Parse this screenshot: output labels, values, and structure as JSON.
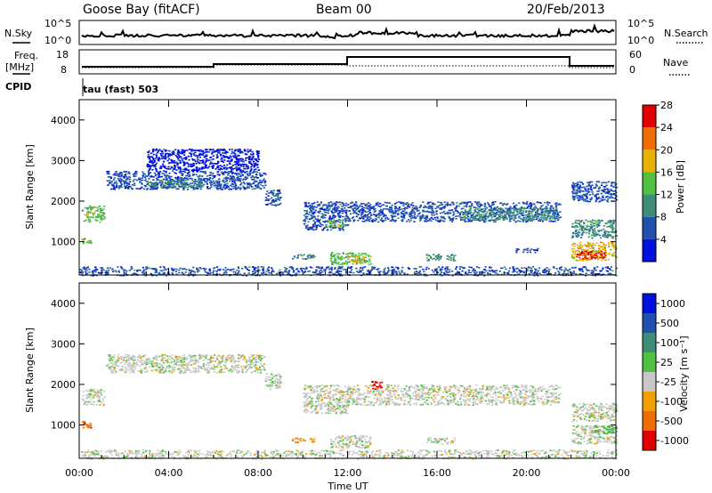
{
  "header": {
    "station": "Goose Bay (fitACF)",
    "beam": "Beam 00",
    "date": "20/Feb/2013"
  },
  "top_panels": {
    "nsky_label": "N.Sky",
    "nsky_ticks": [
      "10^5",
      "10^0"
    ],
    "nsearch_label": "N.Search",
    "nsearch_ticks": [
      "10^5",
      "10^0"
    ],
    "freq_label_1": "Freq.",
    "freq_label_2": "[MHz]",
    "freq_ticks": [
      "18",
      "8"
    ],
    "nave_label": "Nave",
    "nave_ticks": [
      "60",
      "0"
    ],
    "cpid_label": "CPID",
    "cpid_value": "tau (fast) 503"
  },
  "chart_data": [
    {
      "type": "heatmap",
      "name": "power",
      "ylabel": "Slant Range [km]",
      "ylim": [
        180,
        4500
      ],
      "y_ticks": [
        1000,
        2000,
        3000,
        4000
      ],
      "xlim": [
        0,
        24
      ],
      "colorbar_label": "Power [dB]",
      "colorbar_ticks": [
        "4",
        "8",
        "12",
        "16",
        "20",
        "24",
        "28"
      ],
      "colors": [
        "#0010e0",
        "#2050b0",
        "#3c8c78",
        "#50c040",
        "#e8b000",
        "#f06c00",
        "#e00000"
      ],
      "regions": [
        {
          "t0": 0.1,
          "t1": 1.1,
          "r0": 1500,
          "r1": 1900,
          "level": 3
        },
        {
          "t0": 0.1,
          "t1": 0.5,
          "r0": 950,
          "r1": 1100,
          "level": 3
        },
        {
          "t0": 1.2,
          "t1": 8.3,
          "r0": 2300,
          "r1": 2750,
          "level": 1
        },
        {
          "t0": 3.0,
          "t1": 5.5,
          "r0": 2350,
          "r1": 2550,
          "level": 2
        },
        {
          "t0": 8.3,
          "t1": 9.0,
          "r0": 1900,
          "r1": 2300,
          "level": 1
        },
        {
          "t0": 10.0,
          "t1": 12.0,
          "r0": 1300,
          "r1": 2000,
          "level": 1
        },
        {
          "t0": 11.0,
          "t1": 11.8,
          "r0": 1350,
          "r1": 1550,
          "level": 3
        },
        {
          "t0": 11.2,
          "t1": 13.0,
          "r0": 450,
          "r1": 750,
          "level": 3
        },
        {
          "t0": 12.0,
          "t1": 12.7,
          "r0": 500,
          "r1": 650,
          "level": 4
        },
        {
          "t0": 9.5,
          "t1": 10.5,
          "r0": 580,
          "r1": 700,
          "level": 2
        },
        {
          "t0": 12.0,
          "t1": 21.5,
          "r0": 1500,
          "r1": 2000,
          "level": 1
        },
        {
          "t0": 17.0,
          "t1": 21.3,
          "r0": 1550,
          "r1": 1850,
          "level": 2
        },
        {
          "t0": 15.5,
          "t1": 16.8,
          "r0": 550,
          "r1": 700,
          "level": 2
        },
        {
          "t0": 19.5,
          "t1": 20.5,
          "r0": 750,
          "r1": 850,
          "level": 1
        },
        {
          "t0": 22.0,
          "t1": 24.0,
          "r0": 2000,
          "r1": 2500,
          "level": 1
        },
        {
          "t0": 22.0,
          "t1": 24.0,
          "r0": 1100,
          "r1": 1550,
          "level": 2
        },
        {
          "t0": 22.0,
          "t1": 24.0,
          "r0": 550,
          "r1": 1000,
          "level": 4
        },
        {
          "t0": 22.2,
          "t1": 23.5,
          "r0": 600,
          "r1": 780,
          "level": 6
        },
        {
          "t0": 0.0,
          "t1": 24.0,
          "r0": 180,
          "r1": 400,
          "level": 1
        },
        {
          "t0": 3.0,
          "t1": 8.0,
          "r0": 2750,
          "r1": 3300,
          "level": 0
        }
      ]
    },
    {
      "type": "heatmap",
      "name": "velocity",
      "ylabel": "Slant Range [km]",
      "ylim": [
        180,
        4500
      ],
      "y_ticks": [
        1000,
        2000,
        3000,
        4000
      ],
      "xlim": [
        0,
        24
      ],
      "x_ticks": [
        "00:00",
        "04:00",
        "08:00",
        "12:00",
        "16:00",
        "20:00",
        "00:00"
      ],
      "xlabel": "Time UT",
      "colorbar_label": "Velocity [m s⁻¹]",
      "colorbar_ticks": [
        "1000",
        "500",
        "100",
        "25",
        "-25",
        "-100",
        "-500",
        "-1000"
      ],
      "colors": [
        "#0010e0",
        "#2050b0",
        "#3c8c78",
        "#50c040",
        "#c8c8c8",
        "#f0a000",
        "#f06c00",
        "#e00000"
      ],
      "regions": [
        {
          "t0": 0.1,
          "t1": 1.1,
          "r0": 1500,
          "r1": 1900,
          "level": 4
        },
        {
          "t0": 0.1,
          "t1": 0.5,
          "r0": 950,
          "r1": 1100,
          "level": 6
        },
        {
          "t0": 1.2,
          "t1": 8.3,
          "r0": 2300,
          "r1": 2750,
          "level": 4
        },
        {
          "t0": 8.3,
          "t1": 9.0,
          "r0": 1900,
          "r1": 2300,
          "level": 4
        },
        {
          "t0": 10.0,
          "t1": 12.0,
          "r0": 1300,
          "r1": 2000,
          "level": 4
        },
        {
          "t0": 9.5,
          "t1": 10.5,
          "r0": 580,
          "r1": 700,
          "level": 5
        },
        {
          "t0": 11.2,
          "t1": 13.0,
          "r0": 450,
          "r1": 750,
          "level": 4
        },
        {
          "t0": 12.0,
          "t1": 21.5,
          "r0": 1500,
          "r1": 2000,
          "level": 4
        },
        {
          "t0": 15.5,
          "t1": 16.8,
          "r0": 550,
          "r1": 700,
          "level": 4
        },
        {
          "t0": 22.0,
          "t1": 24.0,
          "r0": 1100,
          "r1": 1550,
          "level": 4
        },
        {
          "t0": 22.0,
          "t1": 24.0,
          "r0": 550,
          "r1": 1000,
          "level": 4
        },
        {
          "t0": 23.0,
          "t1": 24.0,
          "r0": 800,
          "r1": 1000,
          "level": 3
        },
        {
          "t0": 0.0,
          "t1": 24.0,
          "r0": 180,
          "r1": 400,
          "level": 4
        },
        {
          "t0": 13.0,
          "t1": 13.5,
          "r0": 1900,
          "r1": 2100,
          "level": 7
        }
      ]
    }
  ]
}
